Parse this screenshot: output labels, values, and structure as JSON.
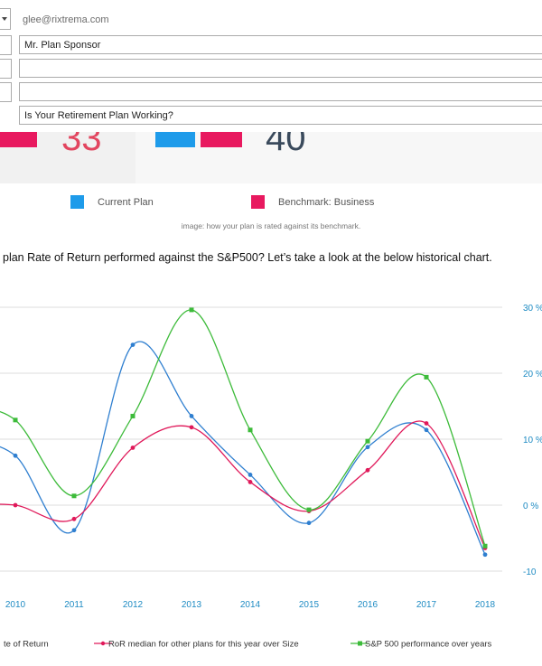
{
  "email": {
    "from": "glee@rixtrema.com",
    "to": "Mr. Plan Sponsor",
    "cc": "",
    "bcc": "",
    "subject": "Is Your Retirement Plan Working?"
  },
  "scores": {
    "current": "33",
    "benchmark": "40"
  },
  "legend": {
    "current": "Current Plan",
    "benchmark": "Benchmark: Business"
  },
  "colors": {
    "current": "#1e9bea",
    "benchmark": "#e8195f",
    "series1": "#2f7fd0",
    "series2": "#e0195a",
    "series3": "#3dbb3a"
  },
  "image_caption": "image: how your plan is rated against its benchmark.",
  "question": "plan Rate of Return performed against the S&P500? Let’s take a look at the below historical chart.",
  "chart_data": {
    "type": "line",
    "x": [
      "2010",
      "2011",
      "2012",
      "2013",
      "2014",
      "2015",
      "2016",
      "2017",
      "2018"
    ],
    "y_ticks": [
      "30 %",
      "20 %",
      "10 %",
      "0 %",
      "-10"
    ],
    "ylim": [
      -10,
      30
    ],
    "series": [
      {
        "name": "te of Return",
        "values": [
          7.5,
          -3.8,
          24.3,
          13.5,
          4.6,
          -2.7,
          8.8,
          11.4,
          -7.5
        ]
      },
      {
        "name": "RoR median for other plans for this year over Size",
        "values": [
          0.0,
          -2.1,
          8.7,
          11.8,
          3.5,
          -0.9,
          5.3,
          12.4,
          -6.5
        ]
      },
      {
        "name": "S&P 500 performance over years",
        "values": [
          12.9,
          1.4,
          13.5,
          29.6,
          11.4,
          -0.7,
          9.7,
          19.4,
          -6.2
        ]
      }
    ]
  }
}
